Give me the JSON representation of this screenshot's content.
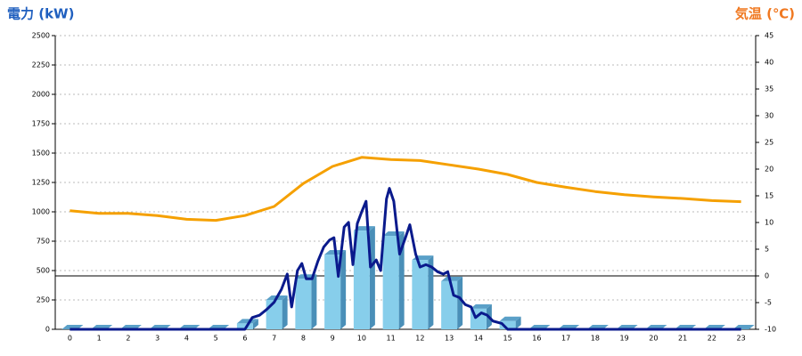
{
  "chart_data": {
    "type": "bar",
    "title_left": "電力 (kW)",
    "title_left_color": "#1f5fbf",
    "title_right": "気温 (℃)",
    "title_right_color": "#f07820",
    "categories": [
      "0",
      "1",
      "2",
      "3",
      "4",
      "5",
      "6",
      "7",
      "8",
      "9",
      "10",
      "11",
      "12",
      "13",
      "14",
      "15",
      "16",
      "17",
      "18",
      "19",
      "20",
      "21",
      "22",
      "23"
    ],
    "ylim": [
      0,
      2500
    ],
    "yticks": [
      0,
      250,
      500,
      750,
      1000,
      1250,
      1500,
      1750,
      2000,
      2250,
      2500
    ],
    "y2lim": [
      -10,
      45
    ],
    "y2ticks": [
      -10,
      -5,
      0,
      5,
      10,
      15,
      20,
      25,
      30,
      35,
      40,
      45
    ],
    "grid": true,
    "series": [
      {
        "type": "bar",
        "color": "#87ceeb",
        "values": [
          0,
          0,
          0,
          0,
          0,
          0,
          50,
          250,
          430,
          636,
          840,
          795,
          590,
          410,
          175,
          70,
          0,
          0,
          0,
          0,
          0,
          0,
          0,
          0
        ]
      },
      {
        "type": "line",
        "color": "#0a1a8c",
        "x": [
          0,
          6,
          6.25,
          6.5,
          6.75,
          7,
          7.25,
          7.45,
          7.6,
          7.8,
          7.95,
          8.1,
          8.3,
          8.5,
          8.7,
          8.9,
          9.05,
          9.2,
          9.4,
          9.55,
          9.7,
          9.85,
          10,
          10.15,
          10.3,
          10.5,
          10.65,
          10.85,
          10.95,
          11.1,
          11.3,
          11.5,
          11.65,
          11.85,
          12,
          12.2,
          12.4,
          12.6,
          12.8,
          12.95,
          13.15,
          13.35,
          13.55,
          13.75,
          13.9,
          14.1,
          14.3,
          14.5,
          14.8,
          15,
          23
        ],
        "values": [
          0,
          0,
          100,
          120,
          170,
          230,
          340,
          470,
          190,
          500,
          560,
          430,
          430,
          580,
          700,
          760,
          780,
          450,
          870,
          910,
          550,
          900,
          1000,
          1090,
          530,
          590,
          500,
          1110,
          1200,
          1090,
          640,
          780,
          890,
          640,
          530,
          550,
          530,
          490,
          470,
          490,
          290,
          270,
          210,
          190,
          100,
          140,
          120,
          70,
          50,
          0,
          0
        ]
      },
      {
        "type": "line",
        "axis": "y2",
        "color": "#f5a000",
        "values": [
          12.2,
          11.7,
          11.7,
          11.3,
          10.6,
          10.4,
          11.3,
          13.0,
          17.3,
          20.5,
          22.2,
          21.8,
          21.6,
          20.8,
          20.0,
          19.0,
          17.5,
          16.6,
          15.8,
          15.2,
          14.8,
          14.5,
          14.1,
          13.9
        ]
      }
    ]
  }
}
